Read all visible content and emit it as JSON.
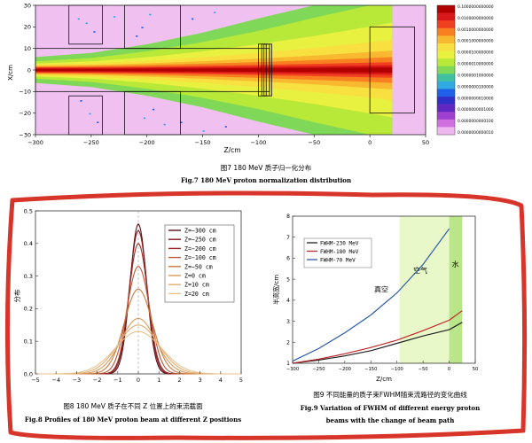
{
  "fig7": {
    "caption_cn": "图7 180 MeV 质子归一化分布",
    "caption_en": "Fig.7 180 MeV proton normalization distribution",
    "ylabel": "X/cm",
    "xlabel": "Z/cm",
    "xticks": [
      "−300",
      "−250",
      "−200",
      "−150",
      "−100",
      "−50",
      "0",
      "50"
    ],
    "yticks": [
      "30",
      "20",
      "10",
      "0",
      "−10",
      "−20",
      "−30"
    ],
    "colorbar": {
      "labels": [
        "0.1000000000000",
        "0.0100000000000",
        "0.0010000000000",
        "0.0001000000000",
        "0.0000100000000",
        "0.0000010000000",
        "0.0000001000000",
        "0.0000000100000",
        "0.0000000010000",
        "0.0000000001000",
        "0.0000000000100",
        "0.0000000000010"
      ],
      "colors": [
        "#b00000",
        "#d81818",
        "#f04020",
        "#f88020",
        "#f8b830",
        "#f8e040",
        "#e8f040",
        "#b8e838",
        "#80d858",
        "#40c0a0",
        "#30a8e0",
        "#2060e8",
        "#3030c8",
        "#6028c0",
        "#a040d0",
        "#d070e0",
        "#f0b8f0"
      ]
    }
  },
  "chart_data": [
    {
      "type": "line",
      "title": "",
      "xlabel": "",
      "ylabel": "分布",
      "xlim": [
        -5,
        5
      ],
      "ylim": [
        0,
        0.5
      ],
      "xticks": [
        "−5",
        "−4",
        "−3",
        "−2",
        "−1",
        "0",
        "1",
        "2",
        "3",
        "4",
        "5"
      ],
      "yticks": [
        "0.0",
        "0.1",
        "0.2",
        "0.3",
        "0.4",
        "0.5"
      ],
      "series": [
        {
          "name": "Z=−300  cm",
          "color": "#5a0f14",
          "sigma": 0.4
        },
        {
          "name": "Z=−250  cm",
          "color": "#801820",
          "sigma": 0.43
        },
        {
          "name": "Z=−200  cm",
          "color": "#9a2a26",
          "sigma": 0.46
        },
        {
          "name": "Z=−100  cm",
          "color": "#b85a3a",
          "sigma": 0.55
        },
        {
          "name": "Z=−50  cm",
          "color": "#c87a40",
          "sigma": 0.68
        },
        {
          "name": "Z=0  cm",
          "color": "#d89a58",
          "sigma": 0.85
        },
        {
          "name": "Z=10  cm",
          "color": "#e0ae70",
          "sigma": 0.98
        },
        {
          "name": "Z=20  cm",
          "color": "#e8c088",
          "sigma": 1.12
        }
      ],
      "peaks": [
        0.46,
        0.44,
        0.4,
        0.33,
        0.26,
        0.17,
        0.15,
        0.13
      ],
      "caption_cn": "图8 180 MeV 质子在不同 Z 位置上的束流截面",
      "caption_en": "Fig.8 Profiles of 180 MeV proton beam at different Z positions"
    },
    {
      "type": "line",
      "title": "",
      "xlabel": "Z/cm",
      "ylabel": "半高宽/cm",
      "xlim": [
        -300,
        50
      ],
      "ylim": [
        1,
        8
      ],
      "xticks": [
        "−300",
        "−250",
        "−200",
        "−150",
        "−100",
        "−50",
        "0",
        "50"
      ],
      "yticks": [
        "1",
        "2",
        "3",
        "4",
        "5",
        "6",
        "7",
        "8"
      ],
      "series": [
        {
          "name": "FWHM-230 MeV",
          "color": "#222222",
          "x": [
            -300,
            -250,
            -200,
            -150,
            -100,
            -50,
            0,
            25
          ],
          "y": [
            1.0,
            1.15,
            1.35,
            1.6,
            1.95,
            2.3,
            2.6,
            2.95
          ]
        },
        {
          "name": "FWHM-180 MeV",
          "color": "#c0282a",
          "x": [
            -300,
            -250,
            -200,
            -150,
            -100,
            -50,
            0,
            25
          ],
          "y": [
            1.0,
            1.2,
            1.45,
            1.75,
            2.1,
            2.55,
            3.05,
            3.5
          ]
        },
        {
          "name": "FWHM-70 MeV",
          "color": "#2a5aa8",
          "x": [
            -300,
            -250,
            -200,
            -150,
            -100,
            -50,
            0
          ],
          "y": [
            1.1,
            1.7,
            2.45,
            3.3,
            4.35,
            5.7,
            7.4
          ]
        }
      ],
      "regions": [
        {
          "label": "真空",
          "from": -300,
          "to": -95,
          "color": "#ffffff"
        },
        {
          "label": "空气",
          "from": -95,
          "to": 0,
          "color": "#e8f8c8"
        },
        {
          "label": "水",
          "from": 0,
          "to": 25,
          "color": "#b8e688"
        }
      ],
      "caption_cn": "图9 不同能量的质子束FWHM随束流路径的变化曲线",
      "caption_en_1": "Fig.9 Variation of FWHM of different energy proton",
      "caption_en_2": "beams with the change of beam path"
    }
  ]
}
